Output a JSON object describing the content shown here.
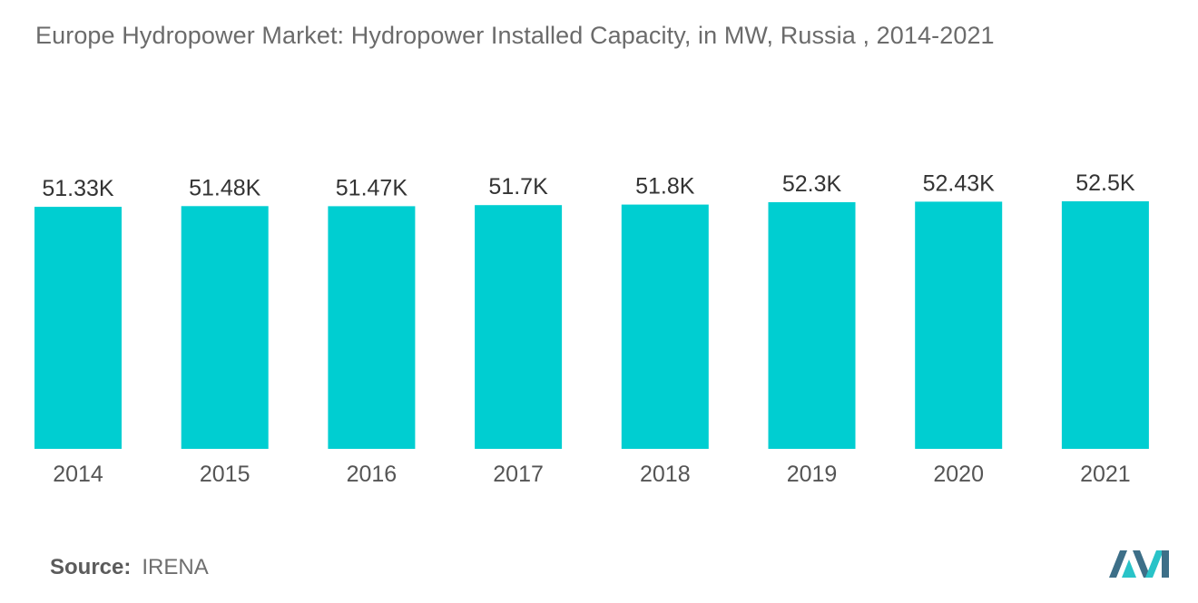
{
  "title": "Europe Hydropower Market: Hydropower Installed Capacity, in MW, Russia , 2014-2021",
  "source": {
    "label": "Source:",
    "value": "IRENA"
  },
  "colors": {
    "bar": "#00CED1",
    "label_text": "#333333",
    "tick_text": "#555555",
    "logo_dark": "#3d6f88",
    "logo_light": "#29c3c8"
  },
  "chart_data": {
    "type": "bar",
    "title": "Europe Hydropower Market: Hydropower Installed Capacity, in MW, Russia , 2014-2021",
    "categories": [
      "2014",
      "2015",
      "2016",
      "2017",
      "2018",
      "2019",
      "2020",
      "2021"
    ],
    "values": [
      51330,
      51480,
      51470,
      51700,
      51800,
      52300,
      52430,
      52500
    ],
    "data_labels": [
      "51.33K",
      "51.48K",
      "51.47K",
      "51.7K",
      "51.8K",
      "52.3K",
      "52.43K",
      "52.5K"
    ],
    "xlabel": "",
    "ylabel": "",
    "ylim": [
      0,
      52500
    ],
    "grid": false,
    "legend": "none"
  }
}
